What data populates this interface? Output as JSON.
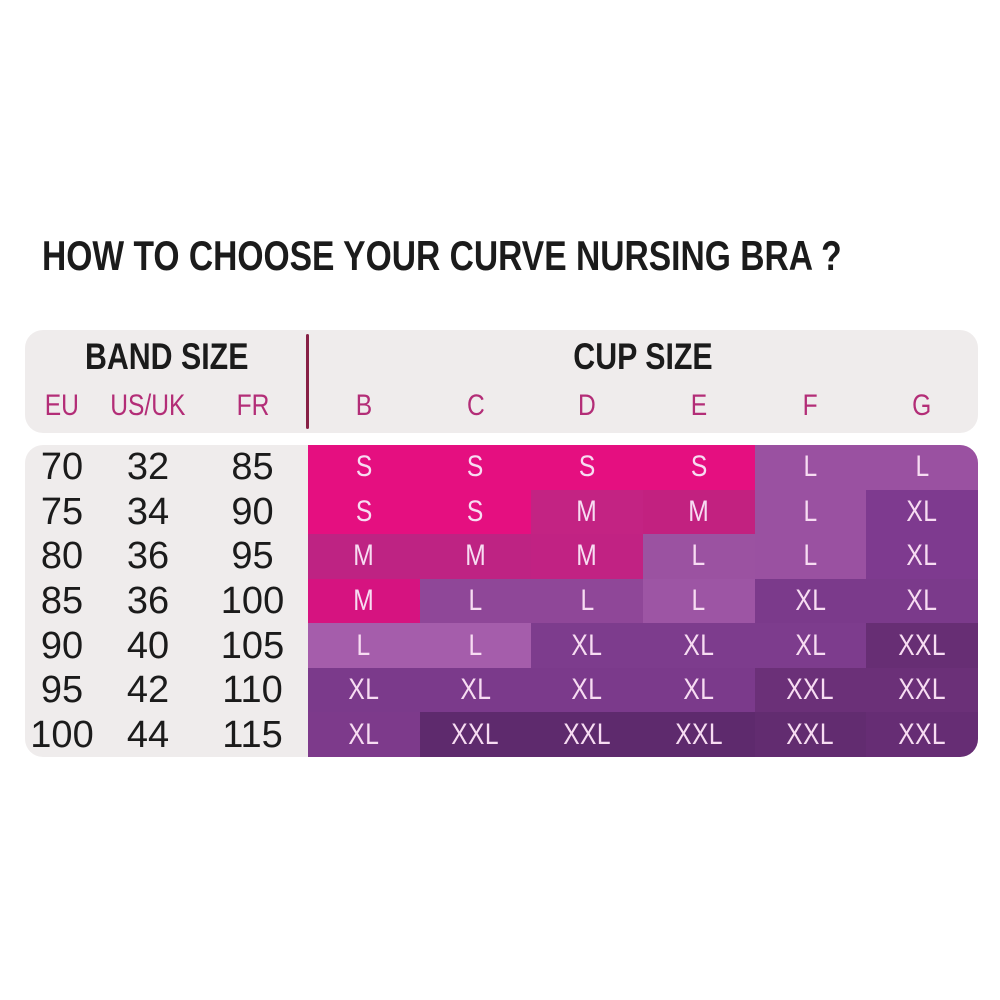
{
  "title": "HOW TO CHOOSE YOUR CURVE NURSING BRA ?",
  "colors": {
    "page_bg": "#ffffff",
    "panel_bg": "#efecec",
    "heading_text": "#1b1b1b",
    "accent_magenta": "#b32d77",
    "divider": "#872045",
    "band_number_text": "#1b1b1b",
    "cell_text": "#f7dcf2"
  },
  "header": {
    "band_size_label": "BAND SIZE",
    "cup_size_label": "CUP SIZE"
  },
  "chart_data": {
    "type": "table",
    "title": "HOW TO CHOOSE YOUR CURVE NURSING BRA ?",
    "band_columns": [
      "EU",
      "US/UK",
      "FR"
    ],
    "cup_columns": [
      "B",
      "C",
      "D",
      "E",
      "F",
      "G"
    ],
    "rows": [
      {
        "band": [
          "70",
          "32",
          "85"
        ],
        "cells": [
          {
            "size": "S",
            "color": "#e50f80"
          },
          {
            "size": "S",
            "color": "#e50f80"
          },
          {
            "size": "S",
            "color": "#e50f80"
          },
          {
            "size": "S",
            "color": "#e50f80"
          },
          {
            "size": "L",
            "color": "#9a51a1"
          },
          {
            "size": "L",
            "color": "#9a51a1"
          }
        ]
      },
      {
        "band": [
          "75",
          "34",
          "90"
        ],
        "cells": [
          {
            "size": "S",
            "color": "#e50f80"
          },
          {
            "size": "S",
            "color": "#e50f80"
          },
          {
            "size": "M",
            "color": "#c32383"
          },
          {
            "size": "M",
            "color": "#c22180"
          },
          {
            "size": "L",
            "color": "#9a51a1"
          },
          {
            "size": "XL",
            "color": "#7e3a8f"
          }
        ]
      },
      {
        "band": [
          "80",
          "36",
          "95"
        ],
        "cells": [
          {
            "size": "M",
            "color": "#be2383"
          },
          {
            "size": "M",
            "color": "#be2383"
          },
          {
            "size": "M",
            "color": "#c12283"
          },
          {
            "size": "L",
            "color": "#9b52a1"
          },
          {
            "size": "L",
            "color": "#9a51a1"
          },
          {
            "size": "XL",
            "color": "#7e3a8f"
          }
        ]
      },
      {
        "band": [
          "85",
          "36",
          "100"
        ],
        "cells": [
          {
            "size": "M",
            "color": "#d61380"
          },
          {
            "size": "L",
            "color": "#8f4798"
          },
          {
            "size": "L",
            "color": "#8f4798"
          },
          {
            "size": "L",
            "color": "#9d55a4"
          },
          {
            "size": "XL",
            "color": "#7b3a8b"
          },
          {
            "size": "XL",
            "color": "#7b3a8b"
          }
        ]
      },
      {
        "band": [
          "90",
          "40",
          "105"
        ],
        "cells": [
          {
            "size": "L",
            "color": "#a55dab"
          },
          {
            "size": "L",
            "color": "#a55dab"
          },
          {
            "size": "XL",
            "color": "#7d3c8d"
          },
          {
            "size": "XL",
            "color": "#7d3c8d"
          },
          {
            "size": "XL",
            "color": "#7d3c8d"
          },
          {
            "size": "XXL",
            "color": "#672e74"
          }
        ]
      },
      {
        "band": [
          "95",
          "42",
          "110"
        ],
        "cells": [
          {
            "size": "XL",
            "color": "#7b3a8b"
          },
          {
            "size": "XL",
            "color": "#7b3a8b"
          },
          {
            "size": "XL",
            "color": "#7b3a8b"
          },
          {
            "size": "XL",
            "color": "#7b3a8b"
          },
          {
            "size": "XXL",
            "color": "#6b3078"
          },
          {
            "size": "XXL",
            "color": "#6b3078"
          }
        ]
      },
      {
        "band": [
          "100",
          "44",
          "115"
        ],
        "cells": [
          {
            "size": "XL",
            "color": "#7d3a8b"
          },
          {
            "size": "XXL",
            "color": "#5e2a6d"
          },
          {
            "size": "XXL",
            "color": "#5e2a6d"
          },
          {
            "size": "XXL",
            "color": "#5e2a6d"
          },
          {
            "size": "XXL",
            "color": "#622c70"
          },
          {
            "size": "XXL",
            "color": "#662d74"
          }
        ]
      }
    ]
  }
}
